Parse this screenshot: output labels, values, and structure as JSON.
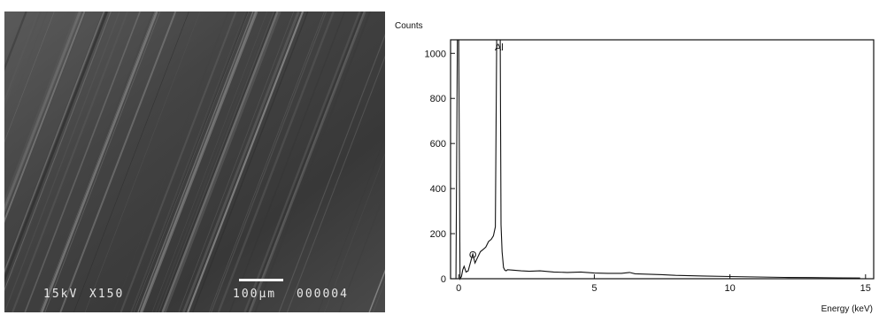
{
  "micrograph": {
    "accelerating_voltage": "15kV",
    "magnification": "X150",
    "scale_bar_label": "100μm",
    "image_number": "000004"
  },
  "chart_data": {
    "type": "line",
    "title": "",
    "xlabel": "Energy (keV)",
    "ylabel": "Counts",
    "xlim": [
      -0.3,
      15.3
    ],
    "ylim": [
      0,
      1060
    ],
    "x_ticks": [
      0,
      5,
      10,
      15
    ],
    "y_ticks": [
      0,
      200,
      400,
      600,
      800,
      1000
    ],
    "grid": false,
    "annotations": [
      {
        "text": "O",
        "x": 0.52,
        "y": 140
      },
      {
        "text": "Al",
        "x": 1.49,
        "y": 1060
      }
    ],
    "series": [
      {
        "x": [
          -0.1,
          -0.05,
          0.0,
          0.05,
          0.1,
          0.15,
          0.2,
          0.27,
          0.35,
          0.45,
          0.52,
          0.6,
          0.7,
          0.8,
          0.9,
          1.0,
          1.1,
          1.2,
          1.28,
          1.35,
          1.4,
          1.44,
          1.47,
          1.5,
          1.53,
          1.56,
          1.6,
          1.65,
          1.7,
          1.75,
          1.8,
          2.0,
          2.3,
          2.6,
          3.0,
          3.5,
          4.0,
          4.5,
          5.0,
          5.5,
          6.0,
          6.3,
          6.5,
          7.0,
          7.5,
          8.0,
          9.0,
          10.0,
          11.0,
          12.0,
          13.0,
          14.0,
          14.8
        ],
        "y": [
          0,
          1060,
          1060,
          0,
          10,
          40,
          55,
          30,
          35,
          80,
          110,
          70,
          95,
          120,
          130,
          140,
          165,
          175,
          190,
          230,
          1060,
          1060,
          1060,
          1060,
          1060,
          240,
          120,
          50,
          38,
          35,
          40,
          38,
          35,
          33,
          35,
          30,
          28,
          30,
          25,
          24,
          24,
          28,
          22,
          20,
          18,
          15,
          12,
          10,
          8,
          6,
          5,
          4,
          3
        ]
      }
    ]
  }
}
